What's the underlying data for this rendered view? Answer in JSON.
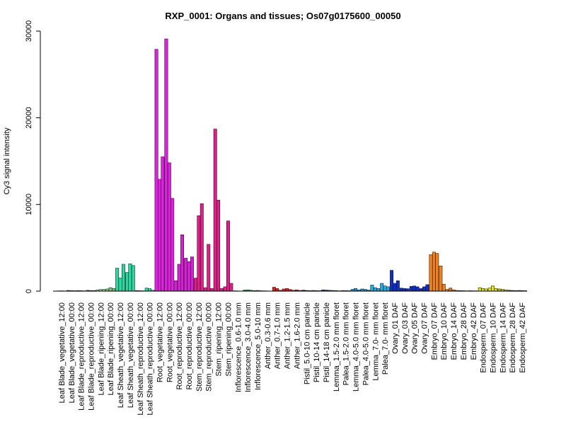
{
  "chart_data": {
    "type": "bar",
    "title": "RXP_0001: Organs and tissues; Os07g0175600_00050",
    "xlabel": "",
    "ylabel": "Cy3 signal intensity",
    "ylim": [
      0,
      30000
    ],
    "yticks": [
      0,
      10000,
      20000,
      30000
    ],
    "grid": false,
    "groups": [
      {
        "label": "Leaf Blade_vegetative_12:00",
        "color": "#404040",
        "values": [
          30,
          40,
          30
        ]
      },
      {
        "label": "Leaf Blade_vegetative_00:00",
        "color": "#404040",
        "values": [
          80,
          60,
          50
        ]
      },
      {
        "label": "Leaf Blade_reproductive_12:00",
        "color": "#404040",
        "values": [
          60,
          50,
          40
        ]
      },
      {
        "label": "Leaf Blade_reproductive_00:00",
        "color": "#404040",
        "values": [
          90,
          70,
          60
        ]
      },
      {
        "label": "Leaf Blade_ripening_12:00",
        "color": "#8fd18f",
        "values": [
          150,
          180,
          200
        ]
      },
      {
        "label": "Leaf Blade_ripening_00:00",
        "color": "#7ac97a",
        "values": [
          250,
          400,
          300
        ]
      },
      {
        "label": "Leaf Sheath_vegetative_12:00",
        "color": "#2fd6a0",
        "values": [
          2650,
          1500,
          3100
        ]
      },
      {
        "label": "Leaf Sheath_vegetative_00:00",
        "color": "#2fd6a0",
        "values": [
          2150,
          3150,
          2950
        ]
      },
      {
        "label": "Leaf Sheath_reproductive_12:00",
        "color": "#20c090",
        "values": [
          60,
          50,
          40
        ]
      },
      {
        "label": "Leaf Sheath_reproductive_00:00",
        "color": "#2fd6a0",
        "values": [
          350,
          280,
          100
        ]
      },
      {
        "label": "Root_vegetative_12:00",
        "color": "#e020e0",
        "values": [
          27900,
          12900,
          15500
        ]
      },
      {
        "label": "Root_vegetative_00:00",
        "color": "#e020e0",
        "values": [
          29100,
          14800,
          10700
        ]
      },
      {
        "label": "Root_reproductive_12:00",
        "color": "#d620d6",
        "values": [
          1200,
          3100,
          6500
        ]
      },
      {
        "label": "Root_reproductive_00:00",
        "color": "#d620d6",
        "values": [
          3800,
          3400,
          3950
        ]
      },
      {
        "label": "Stem_reproductive_12:00",
        "color": "#e0208a",
        "values": [
          1500,
          8700,
          10100
        ]
      },
      {
        "label": "Stem_reproductive_00:00",
        "color": "#e0208a",
        "values": [
          400,
          5400,
          300
        ]
      },
      {
        "label": "Stem_ripening_12:00",
        "color": "#e0208a",
        "values": [
          18700,
          10500,
          300
        ]
      },
      {
        "label": "Stem_ripening_00:00",
        "color": "#e0208a",
        "values": [
          500,
          8100,
          900
        ]
      },
      {
        "label": "Inflorescence_0.6-1.0 mm",
        "color": "#208a40",
        "values": [
          40,
          30,
          20
        ]
      },
      {
        "label": "Inflorescence_3.0-4.0 mm",
        "color": "#20a040",
        "values": [
          120,
          150,
          100
        ]
      },
      {
        "label": "Inflorescence_5.0-10 mm",
        "color": "#20a040",
        "values": [
          60,
          80,
          50
        ]
      },
      {
        "label": "Anther_0.3-0.6 mm",
        "color": "#303030",
        "values": [
          40,
          30,
          20
        ]
      },
      {
        "label": "Anther_0.7-1.0 mm",
        "color": "#e02020",
        "values": [
          450,
          300,
          100
        ]
      },
      {
        "label": "Anther_1.2-1.5 mm",
        "color": "#e02020",
        "values": [
          250,
          300,
          200
        ]
      },
      {
        "label": "Anther_1.6-2.0 mm",
        "color": "#d02020",
        "values": [
          100,
          150,
          80
        ]
      },
      {
        "label": "Pistil_5.0-10 cm panicle",
        "color": "#404040",
        "values": [
          120,
          80,
          60
        ]
      },
      {
        "label": "Pistil_10-14 cm panicle",
        "color": "#404040",
        "values": [
          80,
          60,
          50
        ]
      },
      {
        "label": "Pistil_14-18 cm panicle",
        "color": "#2040a0",
        "values": [
          150,
          120,
          100
        ]
      },
      {
        "label": "Lemma_1.5-2.0 mm floret",
        "color": "#404040",
        "values": [
          80,
          60,
          40
        ]
      },
      {
        "label": "Palea_1.5-2.0 mm floret",
        "color": "#404040",
        "values": [
          70,
          60,
          50
        ]
      },
      {
        "label": "Lemma_4.0-5.0 mm floret",
        "color": "#2090d0",
        "values": [
          200,
          300,
          150
        ]
      },
      {
        "label": "Palea_4.0-5.0 mm floret",
        "color": "#2090d0",
        "values": [
          250,
          200,
          120
        ]
      },
      {
        "label": "Lemma_7.0- mm floret",
        "color": "#2aa8e0",
        "values": [
          700,
          400,
          300
        ]
      },
      {
        "label": "Palea_7.0- mm floret",
        "color": "#2aa8e0",
        "values": [
          900,
          600,
          500
        ]
      },
      {
        "label": "Ovary_01 DAF",
        "color": "#1030c0",
        "values": [
          2400,
          900,
          1200
        ]
      },
      {
        "label": "Ovary_03 DAF",
        "color": "#1030c0",
        "values": [
          350,
          300,
          280
        ]
      },
      {
        "label": "Ovary_05 DAF",
        "color": "#1030c0",
        "values": [
          550,
          600,
          500
        ]
      },
      {
        "label": "Ovary_07 DAF",
        "color": "#1030c0",
        "values": [
          300,
          500,
          750
        ]
      },
      {
        "label": "Embryo_07 DAF",
        "color": "#f08020",
        "values": [
          4200,
          4500,
          4350
        ]
      },
      {
        "label": "Embryo_10 DAF",
        "color": "#f08020",
        "values": [
          2900,
          800,
          200
        ]
      },
      {
        "label": "Embryo_14 DAF",
        "color": "#e07020",
        "values": [
          350,
          150,
          80
        ]
      },
      {
        "label": "Embryo_28 DAF",
        "color": "#604020",
        "values": [
          60,
          50,
          40
        ]
      },
      {
        "label": "Embryo_42 DAF",
        "color": "#404040",
        "values": [
          50,
          40,
          40
        ]
      },
      {
        "label": "Endosperm_07 DAF",
        "color": "#e0e020",
        "values": [
          400,
          300,
          250
        ]
      },
      {
        "label": "Endosperm_10 DAF",
        "color": "#e0e020",
        "values": [
          350,
          600,
          300
        ]
      },
      {
        "label": "Endosperm_14 DAF",
        "color": "#c0c020",
        "values": [
          250,
          200,
          150
        ]
      },
      {
        "label": "Endosperm_28 DAF",
        "color": "#606020",
        "values": [
          100,
          80,
          60
        ]
      },
      {
        "label": "Endosperm_42 DAF",
        "color": "#404040",
        "values": [
          80,
          60,
          50
        ]
      }
    ]
  }
}
